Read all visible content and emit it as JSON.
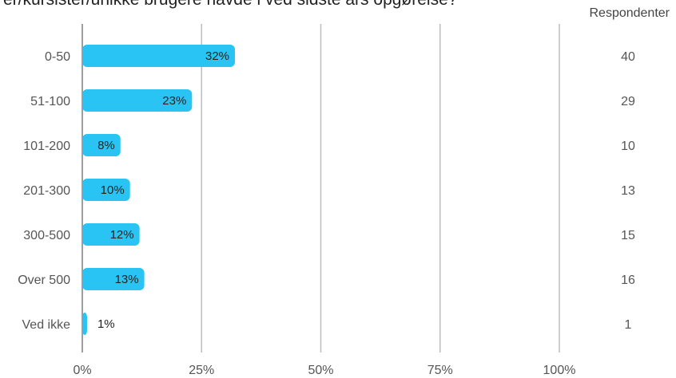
{
  "question": "er/kursister/unikke brugere havde i ved sidste års opgørelse?",
  "respondents_header": "Respondenter",
  "colors": {
    "bar": "#29c4f4",
    "grid": "#bdbdbd",
    "axis": "#9e9e9e"
  },
  "chart_data": {
    "type": "bar",
    "orientation": "horizontal",
    "categories": [
      "0-50",
      "51-100",
      "101-200",
      "201-300",
      "300-500",
      "Over 500",
      "Ved ikke"
    ],
    "values": [
      32,
      23,
      8,
      10,
      12,
      13,
      1
    ],
    "value_labels": [
      "32%",
      "23%",
      "8%",
      "10%",
      "12%",
      "13%",
      "1%"
    ],
    "respondents": [
      40,
      29,
      10,
      13,
      15,
      16,
      1
    ],
    "xlim": [
      0,
      100
    ],
    "xticks": [
      0,
      25,
      50,
      75,
      100
    ],
    "xtick_labels": [
      "0%",
      "25%",
      "50%",
      "75%",
      "100%"
    ],
    "grid": true
  }
}
